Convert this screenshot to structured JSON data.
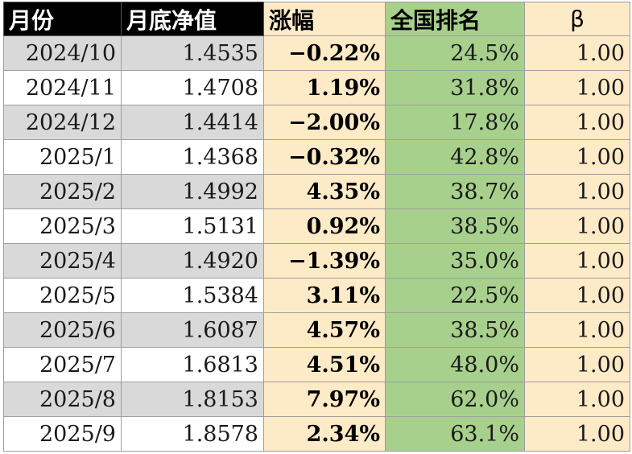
{
  "table": {
    "headers": {
      "month": "月份",
      "nav": "月底净值",
      "change": "涨幅",
      "rank": "全国排名",
      "beta": "β"
    },
    "rows": [
      {
        "month": "2024/10",
        "nav": "1.4535",
        "change": "−0.22%",
        "rank": "24.5%",
        "beta": "1.00"
      },
      {
        "month": "2024/11",
        "nav": "1.4708",
        "change": "1.19%",
        "rank": "31.8%",
        "beta": "1.00"
      },
      {
        "month": "2024/12",
        "nav": "1.4414",
        "change": "−2.00%",
        "rank": "17.8%",
        "beta": "1.00"
      },
      {
        "month": "2025/1",
        "nav": "1.4368",
        "change": "−0.32%",
        "rank": "42.8%",
        "beta": "1.00"
      },
      {
        "month": "2025/2",
        "nav": "1.4992",
        "change": "4.35%",
        "rank": "38.7%",
        "beta": "1.00"
      },
      {
        "month": "2025/3",
        "nav": "1.5131",
        "change": "0.92%",
        "rank": "38.5%",
        "beta": "1.00"
      },
      {
        "month": "2025/4",
        "nav": "1.4920",
        "change": "−1.39%",
        "rank": "35.0%",
        "beta": "1.00"
      },
      {
        "month": "2025/5",
        "nav": "1.5384",
        "change": "3.11%",
        "rank": "22.5%",
        "beta": "1.00"
      },
      {
        "month": "2025/6",
        "nav": "1.6087",
        "change": "4.57%",
        "rank": "38.5%",
        "beta": "1.00"
      },
      {
        "month": "2025/7",
        "nav": "1.6813",
        "change": "4.51%",
        "rank": "48.0%",
        "beta": "1.00"
      },
      {
        "month": "2025/8",
        "nav": "1.8153",
        "change": "7.97%",
        "rank": "62.0%",
        "beta": "1.00"
      },
      {
        "month": "2025/9",
        "nav": "1.8578",
        "change": "2.34%",
        "rank": "63.1%",
        "beta": "1.00"
      }
    ]
  },
  "colors": {
    "header_dark": "#000000",
    "header_text_light": "#ffffff",
    "cream": "#fdeac6",
    "green": "#a8d08d",
    "shade_gray": "#d9d9d9"
  }
}
